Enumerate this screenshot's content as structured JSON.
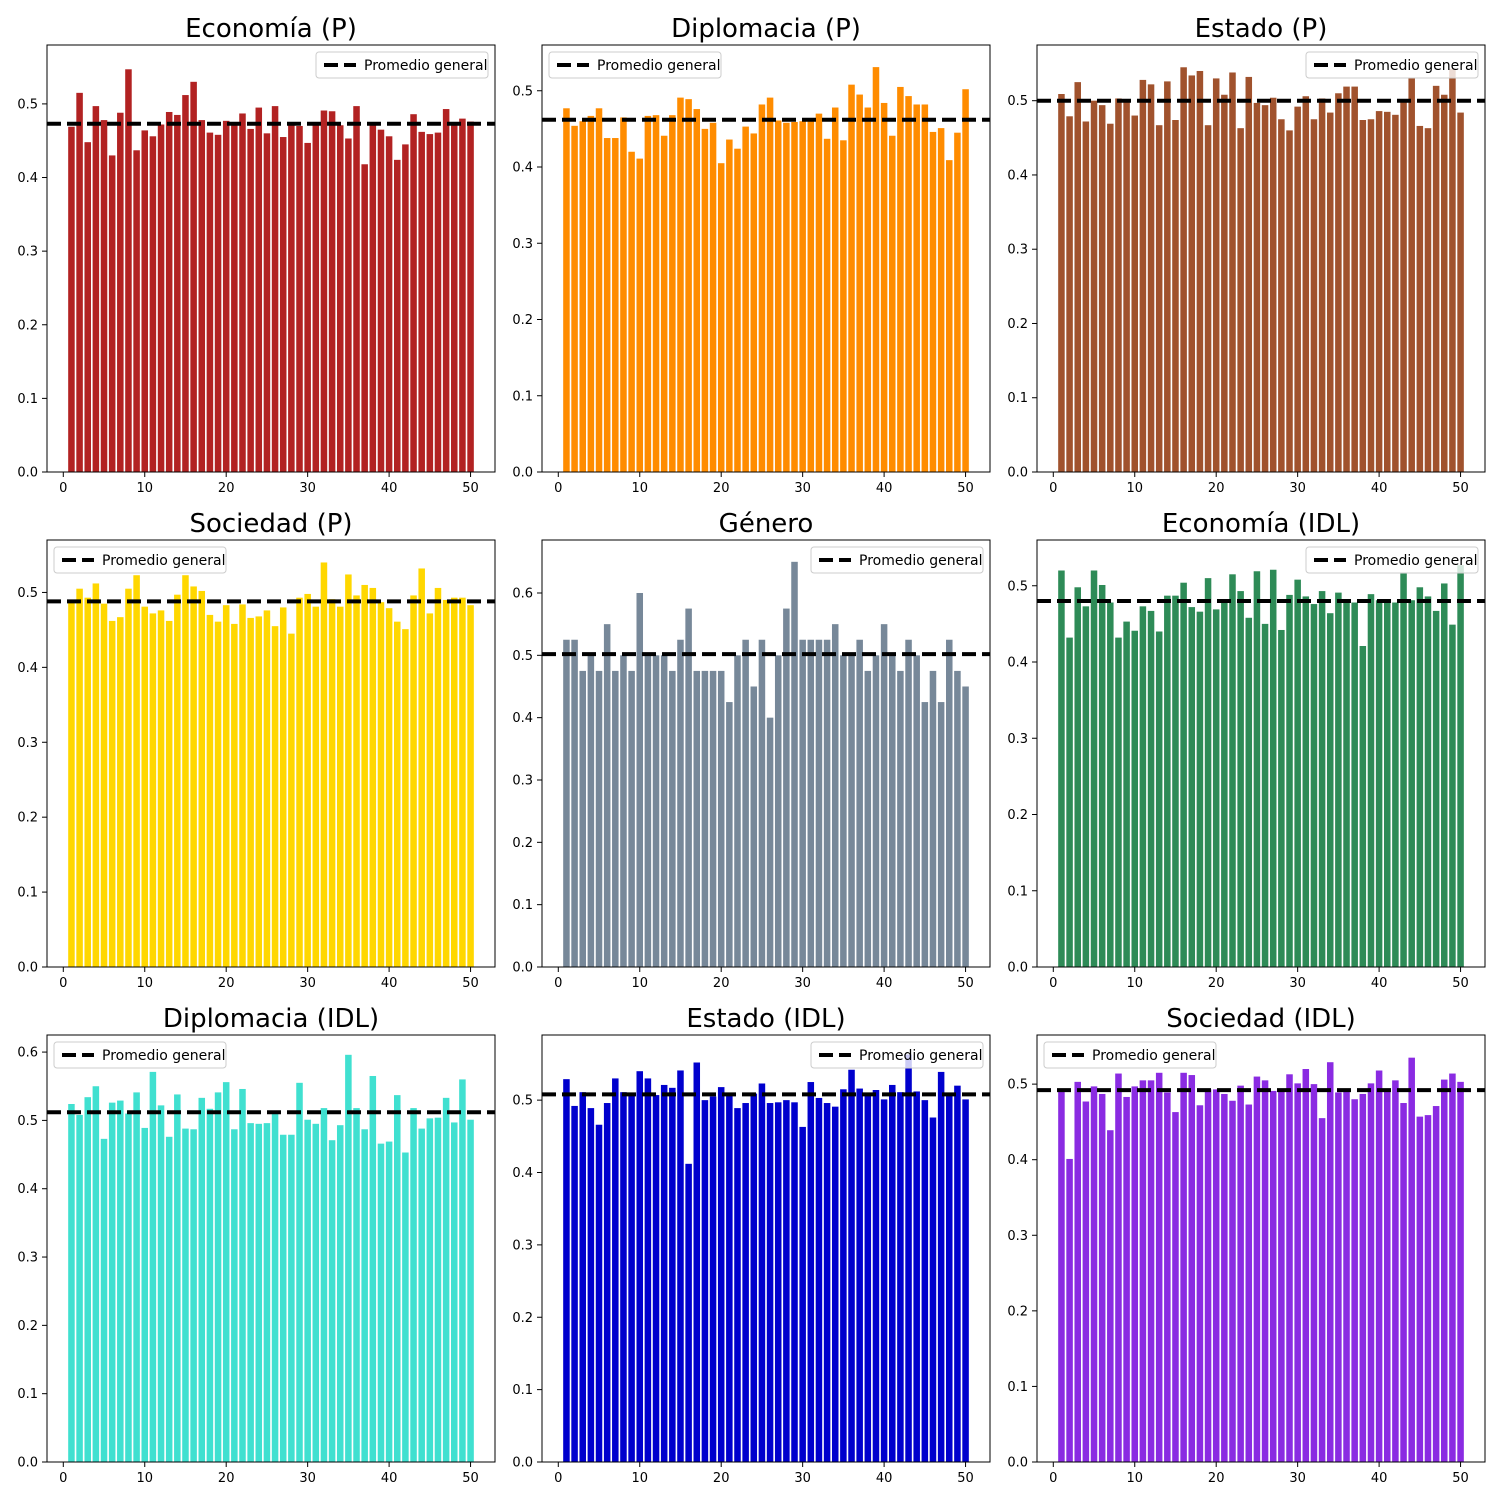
{
  "figure": {
    "legend_label": "Promedio general",
    "mean_line": {
      "color": "#000000",
      "style": "dashed"
    }
  },
  "chart_data": [
    {
      "type": "bar",
      "title": "Economía (P)",
      "color": "#b22222",
      "xlim": [
        -2,
        53
      ],
      "ylim": [
        0,
        0.58
      ],
      "xticks": [
        0,
        10,
        20,
        30,
        40,
        50
      ],
      "yticks": [
        0.0,
        0.1,
        0.2,
        0.3,
        0.4,
        0.5
      ],
      "legend_position": "top-right",
      "mean": 0.473,
      "x": [
        1,
        2,
        3,
        4,
        5,
        6,
        7,
        8,
        9,
        10,
        11,
        12,
        13,
        14,
        15,
        16,
        17,
        18,
        19,
        20,
        21,
        22,
        23,
        24,
        25,
        26,
        27,
        28,
        29,
        30,
        31,
        32,
        33,
        34,
        35,
        36,
        37,
        38,
        39,
        40,
        41,
        42,
        43,
        44,
        45,
        46,
        47,
        48,
        49,
        50
      ],
      "values": [
        0.469,
        0.515,
        0.448,
        0.497,
        0.478,
        0.43,
        0.488,
        0.547,
        0.437,
        0.464,
        0.456,
        0.472,
        0.489,
        0.485,
        0.512,
        0.53,
        0.478,
        0.461,
        0.458,
        0.477,
        0.474,
        0.487,
        0.466,
        0.495,
        0.46,
        0.497,
        0.455,
        0.471,
        0.47,
        0.447,
        0.473,
        0.491,
        0.49,
        0.471,
        0.453,
        0.497,
        0.418,
        0.475,
        0.465,
        0.456,
        0.424,
        0.445,
        0.486,
        0.462,
        0.459,
        0.461,
        0.493,
        0.475,
        0.48,
        0.476
      ]
    },
    {
      "type": "bar",
      "title": "Diplomacia (P)",
      "color": "#ff8c00",
      "xlim": [
        -2,
        53
      ],
      "ylim": [
        0,
        0.56
      ],
      "xticks": [
        0,
        10,
        20,
        30,
        40,
        50
      ],
      "yticks": [
        0.0,
        0.1,
        0.2,
        0.3,
        0.4,
        0.5
      ],
      "legend_position": "top-left",
      "mean": 0.462,
      "x": [
        1,
        2,
        3,
        4,
        5,
        6,
        7,
        8,
        9,
        10,
        11,
        12,
        13,
        14,
        15,
        16,
        17,
        18,
        19,
        20,
        21,
        22,
        23,
        24,
        25,
        26,
        27,
        28,
        29,
        30,
        31,
        32,
        33,
        34,
        35,
        36,
        37,
        38,
        39,
        40,
        41,
        42,
        43,
        44,
        45,
        46,
        47,
        48,
        49,
        50
      ],
      "values": [
        0.477,
        0.454,
        0.46,
        0.467,
        0.477,
        0.438,
        0.438,
        0.465,
        0.42,
        0.411,
        0.467,
        0.468,
        0.441,
        0.468,
        0.491,
        0.489,
        0.476,
        0.45,
        0.458,
        0.405,
        0.436,
        0.424,
        0.453,
        0.444,
        0.482,
        0.491,
        0.461,
        0.458,
        0.459,
        0.46,
        0.461,
        0.47,
        0.437,
        0.478,
        0.435,
        0.508,
        0.495,
        0.478,
        0.531,
        0.484,
        0.441,
        0.505,
        0.493,
        0.482,
        0.482,
        0.446,
        0.451,
        0.409,
        0.445,
        0.502
      ]
    },
    {
      "type": "bar",
      "title": "Estado (P)",
      "color": "#a0522d",
      "xlim": [
        -2,
        53
      ],
      "ylim": [
        0,
        0.575
      ],
      "xticks": [
        0,
        10,
        20,
        30,
        40,
        50
      ],
      "yticks": [
        0.0,
        0.1,
        0.2,
        0.3,
        0.4,
        0.5
      ],
      "legend_position": "top-right",
      "mean": 0.5,
      "x": [
        1,
        2,
        3,
        4,
        5,
        6,
        7,
        8,
        9,
        10,
        11,
        12,
        13,
        14,
        15,
        16,
        17,
        18,
        19,
        20,
        21,
        22,
        23,
        24,
        25,
        26,
        27,
        28,
        29,
        30,
        31,
        32,
        33,
        34,
        35,
        36,
        37,
        38,
        39,
        40,
        41,
        42,
        43,
        44,
        45,
        46,
        47,
        48,
        49,
        50
      ],
      "values": [
        0.509,
        0.479,
        0.525,
        0.472,
        0.5,
        0.494,
        0.469,
        0.503,
        0.499,
        0.48,
        0.528,
        0.522,
        0.467,
        0.526,
        0.474,
        0.545,
        0.534,
        0.54,
        0.467,
        0.53,
        0.508,
        0.538,
        0.463,
        0.532,
        0.497,
        0.494,
        0.504,
        0.475,
        0.46,
        0.492,
        0.506,
        0.475,
        0.503,
        0.484,
        0.51,
        0.519,
        0.519,
        0.474,
        0.475,
        0.486,
        0.485,
        0.481,
        0.5,
        0.531,
        0.466,
        0.463,
        0.52,
        0.508,
        0.543,
        0.484
      ]
    },
    {
      "type": "bar",
      "title": "Sociedad (P)",
      "color": "#ffd700",
      "xlim": [
        -2,
        53
      ],
      "ylim": [
        0,
        0.57
      ],
      "xticks": [
        0,
        10,
        20,
        30,
        40,
        50
      ],
      "yticks": [
        0.0,
        0.1,
        0.2,
        0.3,
        0.4,
        0.5
      ],
      "legend_position": "top-left",
      "mean": 0.488,
      "x": [
        1,
        2,
        3,
        4,
        5,
        6,
        7,
        8,
        9,
        10,
        11,
        12,
        13,
        14,
        15,
        16,
        17,
        18,
        19,
        20,
        21,
        22,
        23,
        24,
        25,
        26,
        27,
        28,
        29,
        30,
        31,
        32,
        33,
        34,
        35,
        36,
        37,
        38,
        39,
        40,
        41,
        42,
        43,
        44,
        45,
        46,
        47,
        48,
        49,
        50
      ],
      "values": [
        0.488,
        0.505,
        0.493,
        0.512,
        0.485,
        0.462,
        0.467,
        0.505,
        0.523,
        0.481,
        0.472,
        0.476,
        0.462,
        0.497,
        0.523,
        0.508,
        0.502,
        0.47,
        0.461,
        0.483,
        0.458,
        0.484,
        0.466,
        0.468,
        0.476,
        0.455,
        0.48,
        0.445,
        0.493,
        0.498,
        0.481,
        0.54,
        0.491,
        0.481,
        0.524,
        0.496,
        0.51,
        0.506,
        0.487,
        0.479,
        0.461,
        0.451,
        0.496,
        0.532,
        0.472,
        0.506,
        0.49,
        0.493,
        0.493,
        0.483
      ]
    },
    {
      "type": "bar",
      "title": "Género",
      "color": "#778899",
      "xlim": [
        -2,
        53
      ],
      "ylim": [
        0,
        0.685
      ],
      "xticks": [
        0,
        10,
        20,
        30,
        40,
        50
      ],
      "yticks": [
        0.0,
        0.1,
        0.2,
        0.3,
        0.4,
        0.5,
        0.6
      ],
      "legend_position": "top-right",
      "mean": 0.502,
      "x": [
        1,
        2,
        3,
        4,
        5,
        6,
        7,
        8,
        9,
        10,
        11,
        12,
        13,
        14,
        15,
        16,
        17,
        18,
        19,
        20,
        21,
        22,
        23,
        24,
        25,
        26,
        27,
        28,
        29,
        30,
        31,
        32,
        33,
        34,
        35,
        36,
        37,
        38,
        39,
        40,
        41,
        42,
        43,
        44,
        45,
        46,
        47,
        48,
        49,
        50
      ],
      "values": [
        0.525,
        0.525,
        0.475,
        0.5,
        0.475,
        0.55,
        0.475,
        0.5,
        0.475,
        0.6,
        0.5,
        0.5,
        0.5,
        0.475,
        0.525,
        0.575,
        0.475,
        0.475,
        0.475,
        0.475,
        0.425,
        0.5,
        0.525,
        0.45,
        0.525,
        0.4,
        0.5,
        0.575,
        0.65,
        0.525,
        0.525,
        0.525,
        0.525,
        0.55,
        0.5,
        0.5,
        0.525,
        0.475,
        0.5,
        0.55,
        0.5,
        0.475,
        0.525,
        0.5,
        0.425,
        0.475,
        0.425,
        0.525,
        0.475,
        0.45
      ]
    },
    {
      "type": "bar",
      "title": "Economía (IDL)",
      "color": "#2e8b57",
      "xlim": [
        -2,
        53
      ],
      "ylim": [
        0,
        0.56
      ],
      "xticks": [
        0,
        10,
        20,
        30,
        40,
        50
      ],
      "yticks": [
        0.0,
        0.1,
        0.2,
        0.3,
        0.4,
        0.5
      ],
      "legend_position": "top-right",
      "mean": 0.48,
      "x": [
        1,
        2,
        3,
        4,
        5,
        6,
        7,
        8,
        9,
        10,
        11,
        12,
        13,
        14,
        15,
        16,
        17,
        18,
        19,
        20,
        21,
        22,
        23,
        24,
        25,
        26,
        27,
        28,
        29,
        30,
        31,
        32,
        33,
        34,
        35,
        36,
        37,
        38,
        39,
        40,
        41,
        42,
        43,
        44,
        45,
        46,
        47,
        48,
        49,
        50
      ],
      "values": [
        0.52,
        0.432,
        0.498,
        0.473,
        0.52,
        0.501,
        0.478,
        0.432,
        0.453,
        0.441,
        0.473,
        0.467,
        0.44,
        0.487,
        0.487,
        0.504,
        0.472,
        0.466,
        0.51,
        0.469,
        0.478,
        0.515,
        0.493,
        0.458,
        0.519,
        0.45,
        0.521,
        0.442,
        0.488,
        0.508,
        0.486,
        0.476,
        0.493,
        0.464,
        0.491,
        0.481,
        0.478,
        0.421,
        0.489,
        0.481,
        0.481,
        0.478,
        0.516,
        0.481,
        0.498,
        0.486,
        0.467,
        0.503,
        0.449,
        0.527
      ]
    },
    {
      "type": "bar",
      "title": "Diplomacia (IDL)",
      "color": "#40e0d0",
      "xlim": [
        -2,
        53
      ],
      "ylim": [
        0,
        0.625
      ],
      "xticks": [
        0,
        10,
        20,
        30,
        40,
        50
      ],
      "yticks": [
        0.0,
        0.1,
        0.2,
        0.3,
        0.4,
        0.5,
        0.6
      ],
      "legend_position": "top-left",
      "mean": 0.512,
      "x": [
        1,
        2,
        3,
        4,
        5,
        6,
        7,
        8,
        9,
        10,
        11,
        12,
        13,
        14,
        15,
        16,
        17,
        18,
        19,
        20,
        21,
        22,
        23,
        24,
        25,
        26,
        27,
        28,
        29,
        30,
        31,
        32,
        33,
        34,
        35,
        36,
        37,
        38,
        39,
        40,
        41,
        42,
        43,
        44,
        45,
        46,
        47,
        48,
        49,
        50
      ],
      "values": [
        0.524,
        0.508,
        0.534,
        0.55,
        0.473,
        0.526,
        0.529,
        0.51,
        0.541,
        0.489,
        0.571,
        0.522,
        0.476,
        0.538,
        0.488,
        0.487,
        0.533,
        0.517,
        0.541,
        0.556,
        0.487,
        0.546,
        0.496,
        0.495,
        0.496,
        0.514,
        0.479,
        0.479,
        0.555,
        0.501,
        0.495,
        0.518,
        0.471,
        0.493,
        0.596,
        0.518,
        0.487,
        0.565,
        0.466,
        0.469,
        0.537,
        0.453,
        0.518,
        0.488,
        0.503,
        0.504,
        0.533,
        0.497,
        0.56,
        0.501
      ]
    },
    {
      "type": "bar",
      "title": "Estado (IDL)",
      "color": "#0000cd",
      "xlim": [
        -2,
        53
      ],
      "ylim": [
        0,
        0.59
      ],
      "xticks": [
        0,
        10,
        20,
        30,
        40,
        50
      ],
      "yticks": [
        0.0,
        0.1,
        0.2,
        0.3,
        0.4,
        0.5
      ],
      "legend_position": "top-right",
      "mean": 0.508,
      "x": [
        1,
        2,
        3,
        4,
        5,
        6,
        7,
        8,
        9,
        10,
        11,
        12,
        13,
        14,
        15,
        16,
        17,
        18,
        19,
        20,
        21,
        22,
        23,
        24,
        25,
        26,
        27,
        28,
        29,
        30,
        31,
        32,
        33,
        34,
        35,
        36,
        37,
        38,
        39,
        40,
        41,
        42,
        43,
        44,
        45,
        46,
        47,
        48,
        49,
        50
      ],
      "values": [
        0.529,
        0.492,
        0.511,
        0.489,
        0.466,
        0.496,
        0.53,
        0.511,
        0.51,
        0.54,
        0.53,
        0.507,
        0.521,
        0.517,
        0.541,
        0.412,
        0.552,
        0.5,
        0.505,
        0.518,
        0.507,
        0.489,
        0.496,
        0.509,
        0.523,
        0.496,
        0.497,
        0.5,
        0.497,
        0.463,
        0.525,
        0.503,
        0.496,
        0.491,
        0.515,
        0.542,
        0.516,
        0.507,
        0.514,
        0.501,
        0.521,
        0.511,
        0.563,
        0.512,
        0.5,
        0.476,
        0.539,
        0.508,
        0.52,
        0.501
      ]
    },
    {
      "type": "bar",
      "title": "Sociedad (IDL)",
      "color": "#8a2be2",
      "xlim": [
        -2,
        53
      ],
      "ylim": [
        0,
        0.565
      ],
      "xticks": [
        0,
        10,
        20,
        30,
        40,
        50
      ],
      "yticks": [
        0.0,
        0.1,
        0.2,
        0.3,
        0.4,
        0.5
      ],
      "legend_position": "top-left",
      "mean": 0.492,
      "x": [
        1,
        2,
        3,
        4,
        5,
        6,
        7,
        8,
        9,
        10,
        11,
        12,
        13,
        14,
        15,
        16,
        17,
        18,
        19,
        20,
        21,
        22,
        23,
        24,
        25,
        26,
        27,
        28,
        29,
        30,
        31,
        32,
        33,
        34,
        35,
        36,
        37,
        38,
        39,
        40,
        41,
        42,
        43,
        44,
        45,
        46,
        47,
        48,
        49,
        50
      ],
      "values": [
        0.49,
        0.401,
        0.503,
        0.477,
        0.497,
        0.487,
        0.439,
        0.514,
        0.483,
        0.497,
        0.505,
        0.505,
        0.515,
        0.489,
        0.463,
        0.515,
        0.512,
        0.472,
        0.493,
        0.493,
        0.487,
        0.478,
        0.498,
        0.473,
        0.51,
        0.505,
        0.491,
        0.49,
        0.513,
        0.501,
        0.52,
        0.5,
        0.455,
        0.529,
        0.489,
        0.49,
        0.48,
        0.487,
        0.501,
        0.518,
        0.491,
        0.505,
        0.475,
        0.535,
        0.457,
        0.459,
        0.471,
        0.506,
        0.514,
        0.503
      ]
    }
  ]
}
